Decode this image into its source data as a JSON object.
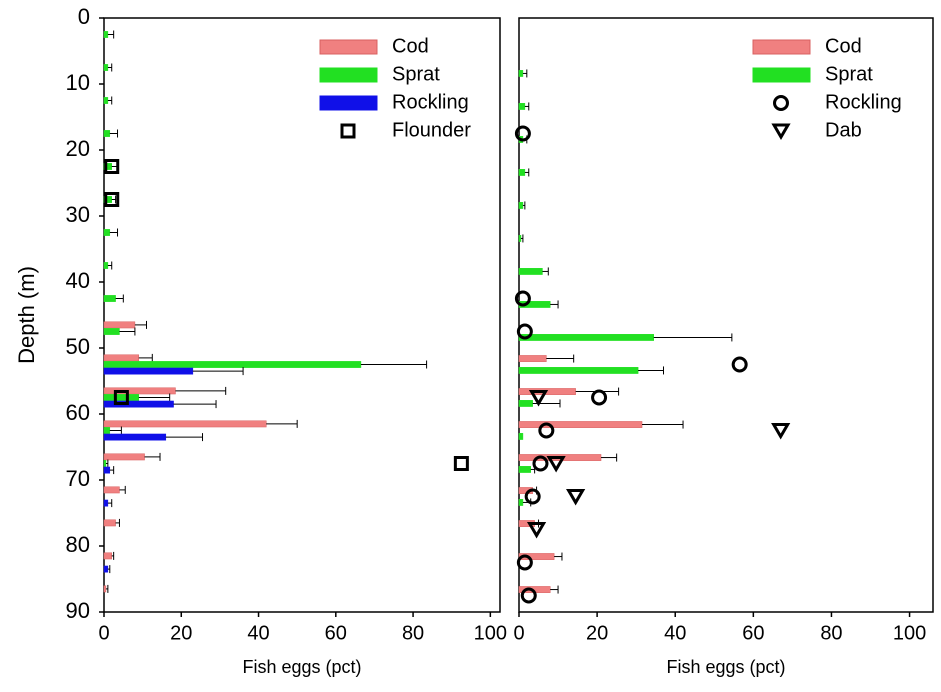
{
  "chart_data": [
    {
      "type": "bar",
      "orientation": "horizontal",
      "ylabel": "Depth (m)",
      "xlabel": "Fish eggs (pct)",
      "y": [
        2.5,
        7.5,
        12.5,
        17.5,
        22.5,
        27.5,
        32.5,
        37.5,
        42.5,
        47.5,
        52.5,
        57.5,
        62.5,
        67.5,
        72.5,
        77.5,
        82.5,
        87.5
      ],
      "ylim": [
        0,
        90
      ],
      "yticks": [
        0,
        10,
        20,
        30,
        40,
        50,
        60,
        70,
        80,
        90
      ],
      "y_inverted": true,
      "xlim": [
        0,
        102.5
      ],
      "xticks": [
        0,
        20,
        40,
        60,
        80,
        100
      ],
      "legend": "upper right",
      "series": [
        {
          "name": "Cod",
          "color": "#f08080",
          "values": [
            0,
            0,
            0,
            0,
            0,
            0,
            0,
            0,
            0,
            8,
            9,
            18.5,
            42,
            10.5,
            4,
            3,
            2,
            0.5
          ],
          "errors": [
            0,
            0,
            0,
            0,
            0,
            0,
            0,
            0,
            0,
            3,
            3.5,
            13,
            8,
            4,
            1.5,
            1,
            0.5,
            0.5
          ]
        },
        {
          "name": "Sprat",
          "color": "#22e022",
          "values": [
            1,
            1,
            1,
            1.5,
            2,
            2,
            1.5,
            1,
            3,
            4,
            66.5,
            9,
            1.5,
            0.5,
            0,
            0,
            0,
            0
          ],
          "errors": [
            1.5,
            1,
            1,
            2,
            1.5,
            1,
            2,
            1,
            2,
            4,
            17,
            8,
            3,
            0.5,
            0,
            0,
            0,
            0
          ]
        },
        {
          "name": "Rockling",
          "color": "#1010e8",
          "values": [
            0,
            0,
            0,
            0,
            0,
            0,
            0,
            0,
            0,
            0,
            23,
            18,
            16,
            1.5,
            1,
            0,
            1,
            0
          ],
          "errors": [
            0,
            0,
            0,
            0,
            0,
            0,
            0,
            0,
            0,
            0,
            13,
            11,
            9.5,
            1,
            1,
            0,
            0.5,
            0
          ]
        },
        {
          "name": "Flounder",
          "type": "scatter",
          "marker": "square",
          "color": "#000000",
          "values": [
            2,
            2,
            4.5,
            92.5
          ],
          "y": [
            22.5,
            27.5,
            57.5,
            67.5
          ]
        }
      ]
    },
    {
      "type": "bar",
      "orientation": "horizontal",
      "xlabel": "Fish eggs (pct)",
      "y": [
        2.5,
        7.5,
        12.5,
        17.5,
        22.5,
        27.5,
        32.5,
        37.5,
        42.5,
        47.5,
        52.5,
        57.5,
        62.5,
        67.5,
        72.5,
        77.5,
        82.5,
        87.5
      ],
      "ylim": [
        0,
        90
      ],
      "y_inverted": true,
      "xlim": [
        0,
        106
      ],
      "xticks": [
        0,
        20,
        40,
        60,
        80,
        100
      ],
      "legend": "upper right",
      "series": [
        {
          "name": "Cod",
          "color": "#f08080",
          "values": [
            0,
            0,
            0,
            0,
            0,
            0,
            0,
            0,
            0,
            0,
            7,
            14.5,
            31.5,
            21,
            3.5,
            4,
            9,
            8
          ],
          "errors": [
            0,
            0,
            0,
            0,
            0,
            0,
            0,
            0,
            0,
            0,
            7,
            11,
            10.5,
            4,
            1,
            1,
            2,
            2
          ]
        },
        {
          "name": "Sprat",
          "color": "#22e022",
          "values": [
            0,
            1,
            1.5,
            1,
            1.5,
            1,
            0.5,
            6,
            8,
            34.5,
            30.5,
            3.5,
            1,
            3,
            1,
            0,
            0,
            0
          ],
          "errors": [
            0,
            1,
            1,
            1,
            1,
            0.5,
            0.5,
            1.5,
            2,
            20,
            6.5,
            7,
            0,
            1,
            2,
            0,
            0,
            0
          ]
        },
        {
          "name": "Rockling",
          "type": "scatter",
          "marker": "circle",
          "color": "#000000",
          "values": [
            1,
            1,
            1.5,
            56.5,
            20.5,
            7,
            5.5,
            3.5,
            1.5,
            2.5
          ],
          "y": [
            17.5,
            42.5,
            47.5,
            52.5,
            57.5,
            62.5,
            67.5,
            72.5,
            82.5,
            87.5
          ]
        },
        {
          "name": "Dab",
          "type": "scatter",
          "marker": "triangle-down",
          "color": "#000000",
          "values": [
            5,
            67,
            9.5,
            14.5,
            4.5
          ],
          "y": [
            57.5,
            62.5,
            67.5,
            72.5,
            77.5
          ]
        }
      ]
    }
  ]
}
